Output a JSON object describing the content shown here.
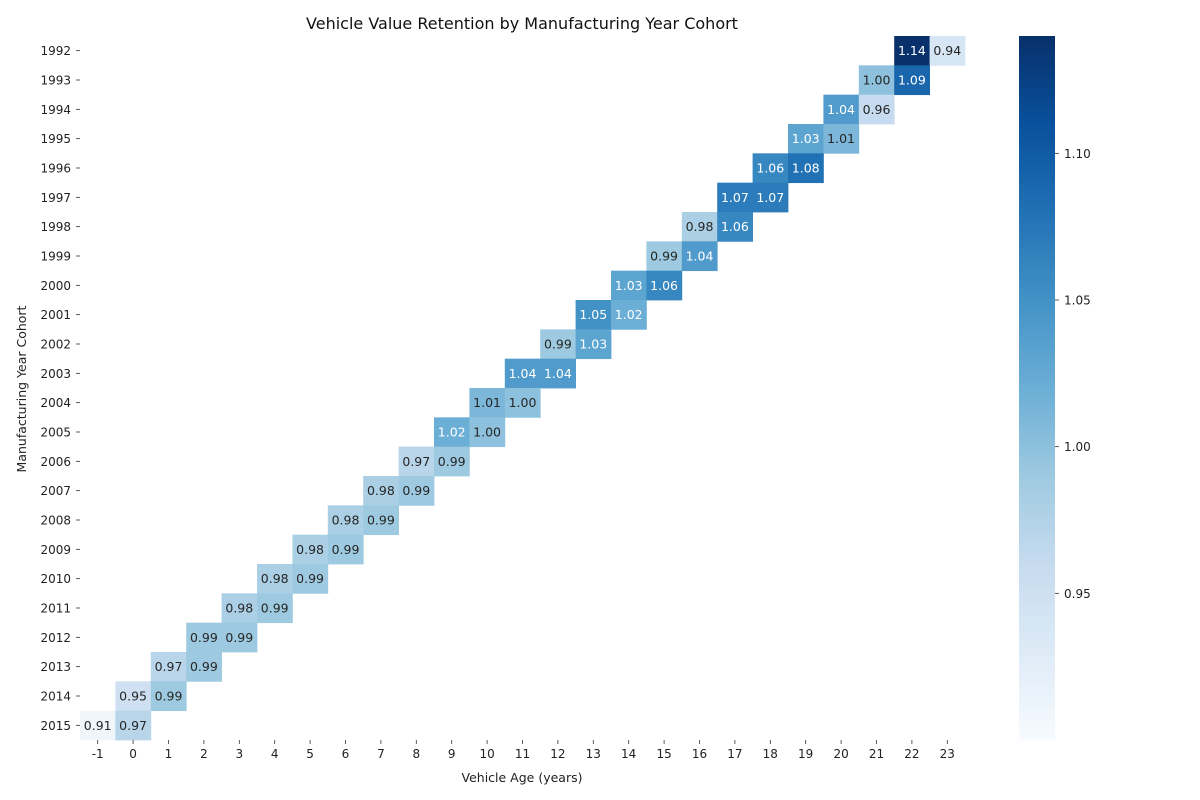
{
  "chart_data": {
    "type": "heatmap",
    "title": "Vehicle Value Retention by Manufacturing Year Cohort",
    "xlabel": "Vehicle Age (years)",
    "ylabel": "Manufacturing Year Cohort",
    "x_categories": [
      "-1",
      "0",
      "1",
      "2",
      "3",
      "4",
      "5",
      "6",
      "7",
      "8",
      "9",
      "10",
      "11",
      "12",
      "13",
      "14",
      "15",
      "16",
      "17",
      "18",
      "19",
      "20",
      "21",
      "22",
      "23"
    ],
    "y_categories": [
      "1992",
      "1993",
      "1994",
      "1995",
      "1996",
      "1997",
      "1998",
      "1999",
      "2000",
      "2001",
      "2002",
      "2003",
      "2004",
      "2005",
      "2006",
      "2007",
      "2008",
      "2009",
      "2010",
      "2011",
      "2012",
      "2013",
      "2014",
      "2015"
    ],
    "cells": [
      {
        "cohort": "1992",
        "age": "22",
        "value": 1.14
      },
      {
        "cohort": "1992",
        "age": "23",
        "value": 0.94
      },
      {
        "cohort": "1993",
        "age": "21",
        "value": 1.0
      },
      {
        "cohort": "1993",
        "age": "22",
        "value": 1.09
      },
      {
        "cohort": "1994",
        "age": "20",
        "value": 1.04
      },
      {
        "cohort": "1994",
        "age": "21",
        "value": 0.96
      },
      {
        "cohort": "1995",
        "age": "19",
        "value": 1.03
      },
      {
        "cohort": "1995",
        "age": "20",
        "value": 1.01
      },
      {
        "cohort": "1996",
        "age": "18",
        "value": 1.06
      },
      {
        "cohort": "1996",
        "age": "19",
        "value": 1.08
      },
      {
        "cohort": "1997",
        "age": "17",
        "value": 1.07
      },
      {
        "cohort": "1997",
        "age": "18",
        "value": 1.07
      },
      {
        "cohort": "1998",
        "age": "16",
        "value": 0.98
      },
      {
        "cohort": "1998",
        "age": "17",
        "value": 1.06
      },
      {
        "cohort": "1999",
        "age": "15",
        "value": 0.99
      },
      {
        "cohort": "1999",
        "age": "16",
        "value": 1.04
      },
      {
        "cohort": "2000",
        "age": "14",
        "value": 1.03
      },
      {
        "cohort": "2000",
        "age": "15",
        "value": 1.06
      },
      {
        "cohort": "2001",
        "age": "13",
        "value": 1.05
      },
      {
        "cohort": "2001",
        "age": "14",
        "value": 1.02
      },
      {
        "cohort": "2002",
        "age": "12",
        "value": 0.99
      },
      {
        "cohort": "2002",
        "age": "13",
        "value": 1.03
      },
      {
        "cohort": "2003",
        "age": "11",
        "value": 1.04
      },
      {
        "cohort": "2003",
        "age": "12",
        "value": 1.04
      },
      {
        "cohort": "2004",
        "age": "10",
        "value": 1.01
      },
      {
        "cohort": "2004",
        "age": "11",
        "value": 1.0
      },
      {
        "cohort": "2005",
        "age": "9",
        "value": 1.02
      },
      {
        "cohort": "2005",
        "age": "10",
        "value": 1.0
      },
      {
        "cohort": "2006",
        "age": "8",
        "value": 0.97
      },
      {
        "cohort": "2006",
        "age": "9",
        "value": 0.99
      },
      {
        "cohort": "2007",
        "age": "7",
        "value": 0.98
      },
      {
        "cohort": "2007",
        "age": "8",
        "value": 0.99
      },
      {
        "cohort": "2008",
        "age": "6",
        "value": 0.98
      },
      {
        "cohort": "2008",
        "age": "7",
        "value": 0.99
      },
      {
        "cohort": "2009",
        "age": "5",
        "value": 0.98
      },
      {
        "cohort": "2009",
        "age": "6",
        "value": 0.99
      },
      {
        "cohort": "2010",
        "age": "4",
        "value": 0.98
      },
      {
        "cohort": "2010",
        "age": "5",
        "value": 0.99
      },
      {
        "cohort": "2011",
        "age": "3",
        "value": 0.98
      },
      {
        "cohort": "2011",
        "age": "4",
        "value": 0.99
      },
      {
        "cohort": "2012",
        "age": "2",
        "value": 0.99
      },
      {
        "cohort": "2012",
        "age": "3",
        "value": 0.99
      },
      {
        "cohort": "2013",
        "age": "1",
        "value": 0.97
      },
      {
        "cohort": "2013",
        "age": "2",
        "value": 0.99
      },
      {
        "cohort": "2014",
        "age": "0",
        "value": 0.95
      },
      {
        "cohort": "2014",
        "age": "1",
        "value": 0.99
      },
      {
        "cohort": "2015",
        "age": "-1",
        "value": 0.91
      },
      {
        "cohort": "2015",
        "age": "0",
        "value": 0.97
      }
    ],
    "colorbar": {
      "colormap": "Blues",
      "vmin": 0.9,
      "vmax": 1.14,
      "ticks": [
        0.95,
        1.0,
        1.05,
        1.1
      ],
      "tick_labels": [
        "0.95",
        "1.00",
        "1.05",
        "1.10"
      ]
    },
    "grid": false,
    "legend": "colorbar-right"
  }
}
